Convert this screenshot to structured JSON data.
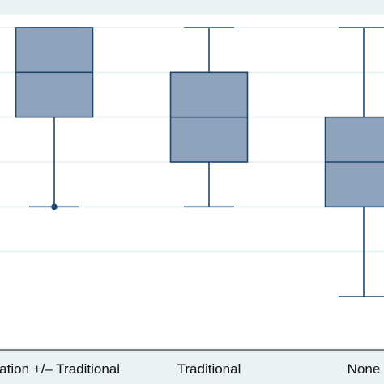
{
  "chart_data": {
    "type": "box",
    "categories": [
      "ulation +/– Traditional",
      "Traditional",
      "None"
    ],
    "boxes": [
      {
        "category": "ulation +/– Traditional",
        "whisker_low": 2,
        "q1": 4,
        "median": 5,
        "q3": 6,
        "whisker_high": 6,
        "outliers": [
          2
        ]
      },
      {
        "category": "Traditional",
        "whisker_low": 2,
        "q1": 3,
        "median": 4,
        "q3": 5,
        "whisker_high": 6,
        "outliers": []
      },
      {
        "category": "None",
        "whisker_low": 0,
        "q1": 2,
        "median": 3,
        "q3": 4,
        "whisker_high": 6,
        "outliers": []
      }
    ],
    "ylim": [
      0,
      6
    ],
    "grid": true,
    "title": "",
    "xlabel": "",
    "ylabel": "",
    "colors": {
      "plot_background": "#ffffff",
      "outer_background": "#eaf2f3",
      "box_fill": "#8fa3bc",
      "box_stroke": "#1a476f",
      "grid": "#eaf2f3",
      "axis": "#000000"
    }
  }
}
